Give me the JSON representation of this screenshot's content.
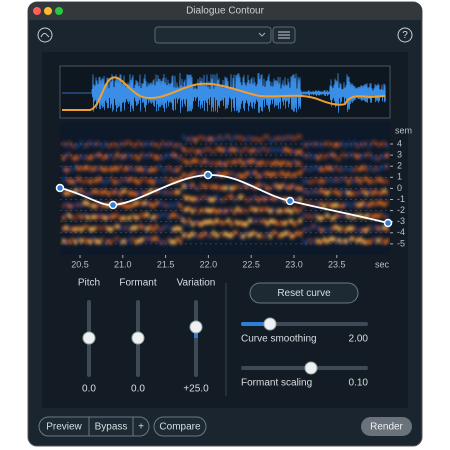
{
  "window": {
    "title": "Dialogue Contour"
  },
  "spectrogram": {
    "unit_y": "sem",
    "y_labels": [
      "4",
      "3",
      "2",
      "1",
      "0",
      "-1",
      "-2",
      "-3",
      "-4",
      "-5"
    ],
    "x_labels": [
      "20.5",
      "21.0",
      "21.5",
      "22.0",
      "22.5",
      "23.0",
      "23.5"
    ],
    "unit_x": "sec"
  },
  "controls": {
    "pitch": {
      "label": "Pitch",
      "value": "0.0"
    },
    "formant": {
      "label": "Formant",
      "value": "0.0"
    },
    "variation": {
      "label": "Variation",
      "value": "+25.0"
    },
    "reset": "Reset curve",
    "curve_smoothing": {
      "label": "Curve smoothing",
      "value": "2.00"
    },
    "formant_scaling": {
      "label": "Formant scaling",
      "value": "0.10"
    }
  },
  "footer": {
    "preview": "Preview",
    "bypass": "Bypass",
    "plus": "+",
    "compare": "Compare",
    "render": "Render"
  }
}
